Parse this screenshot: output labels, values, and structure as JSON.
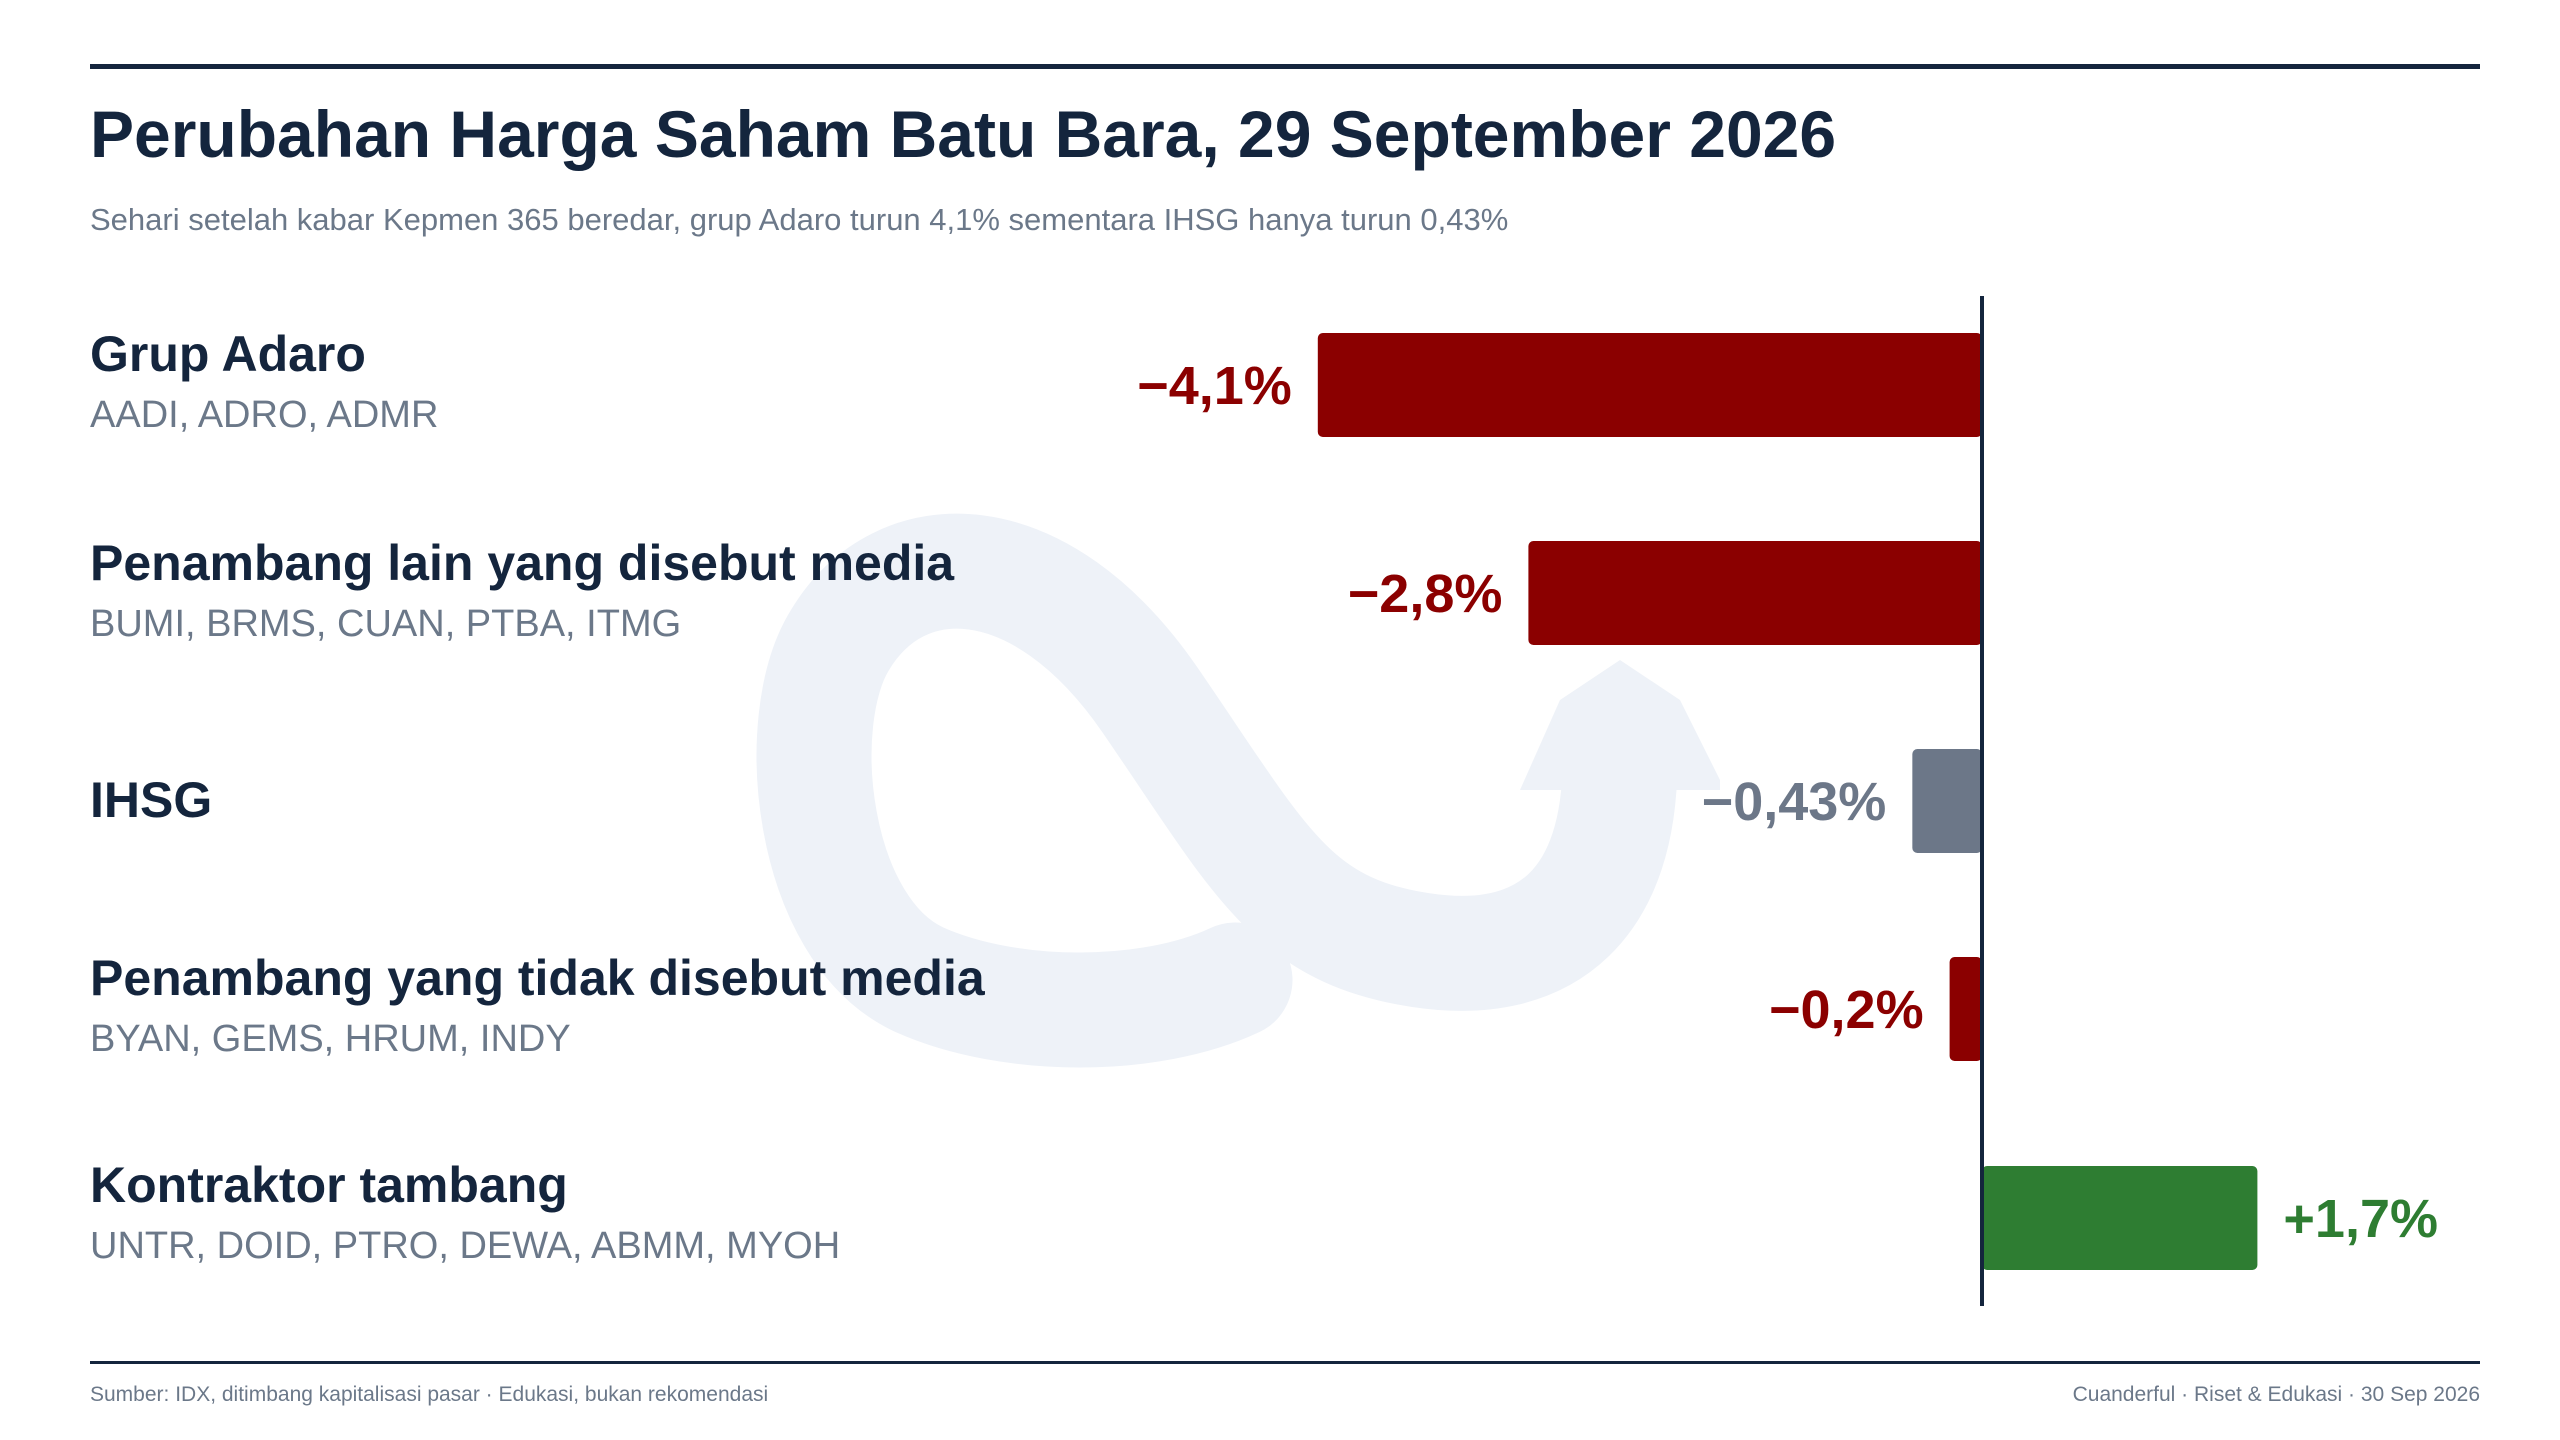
{
  "title": "Perubahan Harga Saham Batu Bara, 29 September 2026",
  "subtitle": "Sehari setelah kabar Kepmen 365 beredar, grup Adaro turun 4,1% sementara IHSG hanya turun 0,43%",
  "footer": {
    "source": "Sumber: IDX, ditimbang kapitalisasi pasar · Edukasi, bukan rekomendasi",
    "brand": "Cuanderful · Riset & Edukasi · 30 Sep 2026"
  },
  "watermark_icon": "cuanderful-logo-icon",
  "colors": {
    "negative": "#8b0000",
    "neutral": "#6c7788",
    "positive": "#2e7d32",
    "axis": "#14253d",
    "text": "#14253d",
    "muted": "#6b7889"
  },
  "chart_data": {
    "type": "bar",
    "orientation": "horizontal",
    "unit": "%",
    "baseline": 0,
    "categories": [
      "Grup Adaro",
      "Penambang lain yang disebut media",
      "IHSG",
      "Penambang yang tidak disebut media",
      "Kontraktor tambang"
    ],
    "tickers": [
      "AADI, ADRO, ADMR",
      "BUMI, BRMS, CUAN, PTBA, ITMG",
      "",
      "BYAN, GEMS, HRUM, INDY",
      "UNTR, DOID, PTRO, DEWA, ABMM, MYOH"
    ],
    "values": [
      -4.1,
      -2.8,
      -0.43,
      -0.2,
      1.7
    ],
    "data_labels": [
      "−4,1%",
      "−2,8%",
      "−0,43%",
      "−0,2%",
      "+1,7%"
    ],
    "bar_colors": [
      "#8b0000",
      "#8b0000",
      "#6c7788",
      "#8b0000",
      "#2e7d32"
    ],
    "grid": false,
    "legend": "none"
  }
}
